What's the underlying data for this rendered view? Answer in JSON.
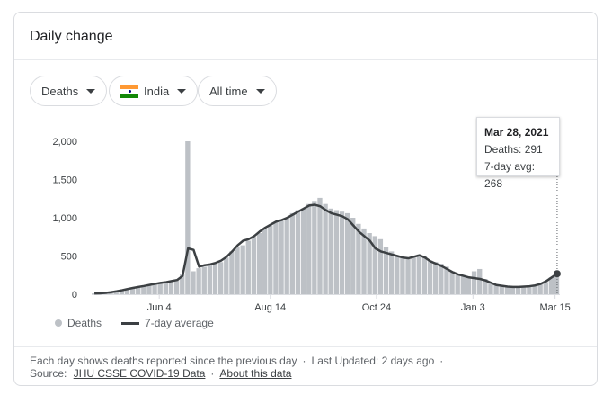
{
  "card": {
    "title": "Daily change"
  },
  "filters": {
    "metric": "Deaths",
    "country": "India",
    "range": "All time"
  },
  "tooltip": {
    "date": "Mar 28, 2021",
    "deaths": "Deaths: 291",
    "avg": "7-day avg: 268"
  },
  "legend": {
    "bars": "Deaths",
    "line": "7-day average"
  },
  "footer": {
    "line1": "Each day shows deaths reported since the previous day",
    "updated": "Last Updated: 2 days ago",
    "source_label": "Source:",
    "source_link": "JHU CSSE COVID-19 Data",
    "about_link": "About this data"
  },
  "colors": {
    "bars": "#bdc1c6",
    "line": "#3c4043",
    "flag_saffron": "#ff9933",
    "flag_green": "#138808",
    "flag_chakra": "#000080"
  },
  "chart_data": {
    "type": "bar",
    "ylim": [
      0,
      2000
    ],
    "yticks": [
      0,
      500,
      1000,
      1500,
      2000
    ],
    "ytick_labels": [
      "0",
      "500",
      "1,000",
      "1,500",
      "2,000"
    ],
    "xtick_labels": [
      "Jun 4",
      "Aug 14",
      "Oct 24",
      "Jan 3",
      "Mar 15"
    ],
    "series": [
      {
        "name": "Deaths",
        "kind": "bar",
        "values": [
          10,
          12,
          20,
          28,
          40,
          55,
          70,
          85,
          100,
          110,
          125,
          140,
          150,
          160,
          175,
          190,
          260,
          2000,
          300,
          340,
          360,
          380,
          400,
          420,
          480,
          560,
          620,
          640,
          700,
          750,
          800,
          860,
          900,
          940,
          960,
          1000,
          1060,
          1100,
          1120,
          1180,
          1220,
          1260,
          1180,
          1120,
          1100,
          1080,
          1060,
          1000,
          920,
          860,
          800,
          760,
          720,
          620,
          560,
          500,
          480,
          460,
          480,
          520,
          500,
          440,
          420,
          400,
          360,
          300,
          260,
          240,
          220,
          300,
          330,
          200,
          150,
          120,
          110,
          100,
          90,
          90,
          95,
          100,
          110,
          130,
          160,
          220,
          291
        ]
      },
      {
        "name": "7-day average",
        "kind": "line",
        "values": [
          10,
          12,
          18,
          26,
          38,
          52,
          68,
          82,
          96,
          108,
          122,
          136,
          148,
          158,
          172,
          186,
          240,
          600,
          580,
          360,
          380,
          390,
          410,
          440,
          490,
          560,
          640,
          700,
          720,
          760,
          820,
          870,
          910,
          950,
          970,
          1000,
          1040,
          1080,
          1120,
          1160,
          1170,
          1150,
          1100,
          1060,
          1040,
          1020,
          980,
          900,
          820,
          760,
          700,
          600,
          560,
          540,
          520,
          500,
          480,
          470,
          490,
          510,
          480,
          430,
          400,
          370,
          330,
          290,
          260,
          240,
          220,
          210,
          200,
          180,
          150,
          120,
          110,
          100,
          95,
          95,
          100,
          105,
          115,
          135,
          170,
          220,
          268
        ]
      }
    ]
  }
}
